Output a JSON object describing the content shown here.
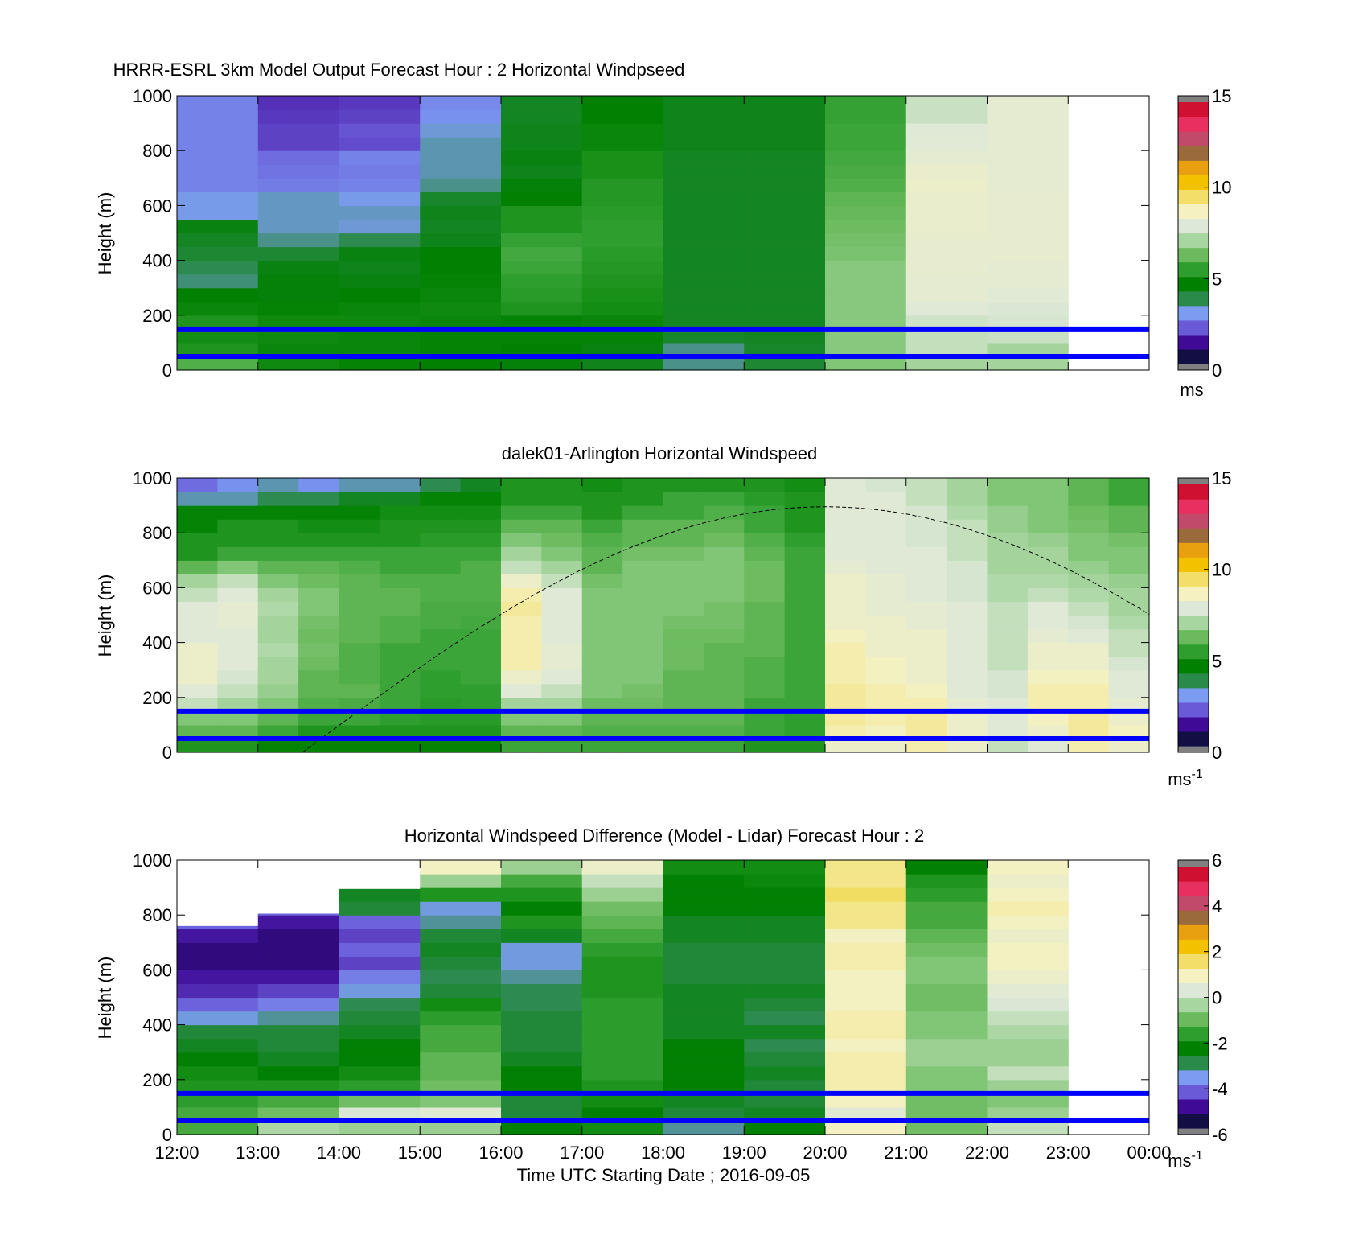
{
  "colors": {
    "overlay_line": "#0000ff",
    "sun_curve": "#000000"
  },
  "colormaps": {
    "windspeed": [
      "#130f44",
      "#3e0a96",
      "#6a5ad8",
      "#7c9cf2",
      "#2a8a4a",
      "#008000",
      "#2e9e2e",
      "#6bbb5e",
      "#a8d6a0",
      "#dde8d8",
      "#f5f1c0",
      "#f2de68",
      "#f2c200",
      "#e8a010",
      "#9a6a3a",
      "#c14a6a",
      "#e83060",
      "#d01030"
    ],
    "difference": [
      "#130f44",
      "#3e0a96",
      "#6a5ad8",
      "#7c9cf2",
      "#2a8a4a",
      "#008000",
      "#2e9e2e",
      "#6bbb5e",
      "#a8d6a0",
      "#dde8d8",
      "#f5f1c0",
      "#f2de68",
      "#f2c200",
      "#e8a010",
      "#9a6a3a",
      "#c14a6a",
      "#e83060",
      "#d01030"
    ]
  },
  "chart_data": [
    {
      "type": "heatmap",
      "title": "HRRR-ESRL 3km Model Output   Forecast Hour : 2 Horizontal Windpseed",
      "ylabel": "Height (m)",
      "xlabel": "",
      "ylim": [
        0,
        1000
      ],
      "yticks": [
        "0",
        "200",
        "400",
        "600",
        "800",
        "1000"
      ],
      "xlim_hours": [
        12,
        24
      ],
      "colorbar": {
        "ticks": [
          "0",
          "5",
          "10",
          "15"
        ],
        "range": [
          0,
          15
        ],
        "unit": "ms"
      },
      "hlines_m": [
        150,
        50
      ],
      "x_hours": [
        12,
        13,
        14,
        15,
        16,
        17,
        18,
        19,
        20,
        21,
        22
      ],
      "y_levels_m": [
        25,
        75,
        125,
        175,
        225,
        275,
        325,
        375,
        425,
        475,
        525,
        575,
        625,
        675,
        725,
        775,
        825,
        875,
        925,
        975
      ],
      "values": [
        [
          5.8,
          5.0,
          4.8,
          5.0,
          4.6,
          4.4,
          3.3,
          3.5,
          3.8,
          4.0,
          4.2,
          2.7,
          2.7,
          2.3,
          2.3,
          2.3,
          2.3,
          2.3,
          2.3,
          2.3
        ],
        [
          4.7,
          4.6,
          4.7,
          4.7,
          4.5,
          4.3,
          4.3,
          4.2,
          3.8,
          3.2,
          2.9,
          2.9,
          2.9,
          2.2,
          2.1,
          2.0,
          1.5,
          1.5,
          1.4,
          1.3
        ],
        [
          4.5,
          4.6,
          4.6,
          4.7,
          4.6,
          4.4,
          4.2,
          4.1,
          4.2,
          3.5,
          2.8,
          2.9,
          2.7,
          2.3,
          2.2,
          2.3,
          1.6,
          1.7,
          1.5,
          1.4
        ],
        [
          4.4,
          4.5,
          4.5,
          4.6,
          4.7,
          4.6,
          4.5,
          4.4,
          4.4,
          4.1,
          4.0,
          4.1,
          3.9,
          3.2,
          3.0,
          3.0,
          3.0,
          2.8,
          2.5,
          2.4
        ],
        [
          4.3,
          4.4,
          4.5,
          4.5,
          5.0,
          5.2,
          5.3,
          5.5,
          5.6,
          5.4,
          5.0,
          5.0,
          4.4,
          4.3,
          4.1,
          4.2,
          4.1,
          4.1,
          4.0,
          4.0
        ],
        [
          4.1,
          4.2,
          4.5,
          4.6,
          4.8,
          4.9,
          5.0,
          5.1,
          5.2,
          5.3,
          5.3,
          5.2,
          5.1,
          5.1,
          4.9,
          4.9,
          4.6,
          4.6,
          4.4,
          4.4
        ],
        [
          3.2,
          3.2,
          3.9,
          4.0,
          4.0,
          4.0,
          4.0,
          4.0,
          4.0,
          4.0,
          4.0,
          4.0,
          4.0,
          4.0,
          4.0,
          4.0,
          4.1,
          4.1,
          4.1,
          4.1
        ],
        [
          3.8,
          3.9,
          4.0,
          4.0,
          4.0,
          4.0,
          4.0,
          4.0,
          4.0,
          4.0,
          4.0,
          4.0,
          4.0,
          4.0,
          4.0,
          4.0,
          4.1,
          4.1,
          4.1,
          4.1
        ],
        [
          6.5,
          6.6,
          6.6,
          6.6,
          6.6,
          6.6,
          6.6,
          6.6,
          6.4,
          6.3,
          6.2,
          6.1,
          6.0,
          5.8,
          5.7,
          5.6,
          5.5,
          5.5,
          5.4,
          5.4
        ],
        [
          7.0,
          7.5,
          7.5,
          7.7,
          8.0,
          8.2,
          8.2,
          8.3,
          8.3,
          8.3,
          8.4,
          8.4,
          8.4,
          8.5,
          8.4,
          8.2,
          8.1,
          8.0,
          7.6,
          7.6
        ],
        [
          7.0,
          7.0,
          7.6,
          7.8,
          7.9,
          8.1,
          8.2,
          8.2,
          8.3,
          8.3,
          8.3,
          8.3,
          8.3,
          8.2,
          8.2,
          8.2,
          8.2,
          8.2,
          8.2,
          8.2
        ]
      ]
    },
    {
      "type": "heatmap",
      "title": "dalek01-Arlington  Horizontal Windspeed",
      "ylabel": "Height (m)",
      "xlabel": "",
      "ylim": [
        0,
        1000
      ],
      "yticks": [
        "0",
        "200",
        "400",
        "600",
        "800",
        "1000"
      ],
      "xlim_hours": [
        12,
        24
      ],
      "colorbar": {
        "ticks": [
          "0",
          "5",
          "10",
          "15"
        ],
        "range": [
          0,
          15
        ],
        "unit": "ms-1"
      },
      "hlines_m": [
        150,
        50
      ],
      "sun_curve": {
        "start_hour": 13.55,
        "peak_hour": 20.0,
        "peak_m": 895,
        "end_m": 500
      },
      "x_hours": [
        12,
        12.5,
        13,
        13.5,
        14,
        14.5,
        15,
        15.5,
        16,
        16.5,
        17,
        17.5,
        18,
        18.5,
        19,
        19.5,
        20,
        20.5,
        21,
        21.5,
        22,
        22.5,
        23,
        23.5
      ],
      "y_levels_m": [
        25,
        75,
        125,
        175,
        225,
        275,
        325,
        375,
        425,
        475,
        525,
        575,
        625,
        675,
        725,
        775,
        825,
        875,
        925,
        975
      ],
      "values": [
        [
          5.0,
          6.0,
          6.5,
          7.5,
          8.0,
          8.5,
          8.5,
          8.5,
          8.0,
          8.0,
          8.0,
          7.5,
          7.0,
          6.0,
          5.0,
          5.0,
          4.5,
          4.5,
          3.0,
          2.0
        ],
        [
          5.0,
          6.0,
          6.5,
          7.0,
          7.5,
          7.8,
          8.0,
          8.0,
          8.0,
          8.2,
          8.2,
          8.0,
          7.5,
          6.5,
          5.5,
          5.0,
          5.0,
          4.5,
          3.0,
          2.5
        ],
        [
          4.5,
          5.5,
          6.0,
          6.5,
          6.8,
          7.0,
          7.0,
          7.2,
          7.0,
          7.0,
          7.2,
          7.0,
          6.5,
          6.0,
          5.5,
          5.0,
          5.0,
          4.5,
          3.5,
          3.0
        ],
        [
          4.5,
          5.0,
          5.5,
          5.8,
          6.0,
          6.0,
          6.2,
          6.3,
          6.2,
          6.3,
          6.5,
          6.5,
          6.2,
          6.0,
          5.5,
          5.0,
          4.8,
          4.5,
          3.5,
          2.5
        ],
        [
          4.5,
          5.0,
          5.5,
          5.7,
          6.0,
          5.8,
          5.8,
          5.8,
          6.0,
          6.0,
          6.0,
          6.0,
          6.0,
          5.8,
          5.5,
          5.0,
          4.8,
          4.5,
          4.0,
          3.0
        ],
        [
          4.5,
          5.0,
          5.3,
          5.5,
          5.5,
          5.5,
          5.5,
          5.5,
          5.8,
          5.8,
          6.0,
          6.0,
          5.8,
          5.5,
          5.5,
          5.0,
          5.0,
          4.8,
          4.0,
          3.0
        ],
        [
          4.5,
          5.0,
          5.2,
          5.2,
          5.3,
          5.3,
          5.5,
          5.5,
          5.5,
          5.7,
          5.7,
          5.8,
          5.8,
          5.5,
          5.5,
          5.2,
          5.0,
          4.8,
          4.5,
          3.5
        ],
        [
          4.5,
          5.0,
          5.2,
          5.3,
          5.3,
          5.5,
          5.5,
          5.5,
          5.5,
          5.6,
          5.7,
          5.8,
          5.8,
          5.8,
          5.5,
          5.2,
          5.0,
          4.8,
          4.5,
          4.0
        ],
        [
          5.5,
          6.0,
          6.5,
          7.0,
          8.0,
          8.5,
          9.0,
          9.0,
          9.0,
          9.0,
          9.2,
          9.0,
          8.5,
          7.5,
          7.0,
          6.5,
          6.0,
          5.5,
          5.0,
          5.0
        ],
        [
          5.5,
          6.0,
          6.5,
          7.0,
          7.5,
          8.0,
          8.2,
          8.2,
          8.0,
          8.0,
          8.0,
          8.0,
          7.5,
          7.0,
          6.5,
          6.2,
          6.0,
          5.5,
          5.0,
          5.0
        ],
        [
          5.5,
          5.8,
          6.0,
          6.2,
          6.5,
          6.5,
          6.5,
          6.5,
          6.5,
          6.5,
          6.5,
          6.5,
          6.3,
          6.0,
          6.0,
          5.8,
          5.5,
          5.0,
          5.0,
          4.8
        ],
        [
          5.5,
          5.8,
          6.0,
          6.2,
          6.3,
          6.5,
          6.5,
          6.5,
          6.5,
          6.5,
          6.5,
          6.5,
          6.5,
          6.5,
          6.3,
          6.0,
          6.0,
          5.5,
          5.0,
          5.0
        ],
        [
          5.5,
          5.8,
          6.0,
          6.0,
          6.0,
          6.0,
          6.2,
          6.2,
          6.2,
          6.3,
          6.5,
          6.5,
          6.5,
          6.5,
          6.3,
          6.0,
          6.0,
          5.5,
          5.5,
          5.0
        ],
        [
          5.5,
          5.8,
          6.0,
          6.0,
          6.0,
          6.0,
          6.0,
          6.0,
          6.2,
          6.3,
          6.3,
          6.5,
          6.5,
          6.5,
          6.5,
          6.2,
          6.0,
          5.8,
          5.5,
          5.0
        ],
        [
          5.0,
          5.5,
          5.5,
          5.5,
          5.8,
          5.8,
          5.8,
          6.0,
          6.0,
          6.0,
          6.0,
          6.2,
          6.2,
          6.2,
          6.0,
          5.8,
          5.5,
          5.5,
          5.2,
          5.0
        ],
        [
          5.0,
          5.3,
          5.3,
          5.5,
          5.5,
          5.5,
          5.5,
          5.5,
          5.5,
          5.5,
          5.5,
          5.5,
          5.5,
          5.5,
          5.5,
          5.3,
          5.0,
          5.0,
          5.0,
          4.8
        ],
        [
          8.5,
          9.0,
          9.2,
          9.2,
          9.2,
          9.0,
          9.0,
          9.0,
          8.8,
          8.5,
          8.5,
          8.5,
          8.5,
          8.2,
          8.0,
          8.0,
          8.0,
          8.0,
          8.0,
          8.0
        ],
        [
          8.5,
          8.8,
          9.0,
          9.0,
          9.0,
          8.8,
          8.8,
          8.5,
          8.5,
          8.5,
          8.2,
          8.2,
          8.2,
          8.0,
          8.0,
          8.0,
          8.0,
          8.0,
          8.0,
          7.8
        ],
        [
          9.0,
          9.2,
          9.2,
          9.0,
          8.8,
          8.5,
          8.5,
          8.5,
          8.5,
          8.2,
          8.2,
          8.0,
          8.0,
          8.0,
          8.0,
          7.8,
          7.8,
          7.8,
          7.5,
          7.5
        ],
        [
          8.5,
          8.5,
          8.5,
          8.2,
          8.0,
          8.0,
          8.0,
          8.0,
          8.0,
          8.0,
          8.0,
          7.8,
          7.8,
          7.8,
          7.5,
          7.5,
          7.5,
          7.2,
          7.0,
          7.0
        ],
        [
          7.5,
          8.0,
          8.0,
          8.0,
          7.8,
          7.8,
          7.5,
          7.5,
          7.5,
          7.5,
          7.5,
          7.2,
          7.2,
          7.0,
          7.0,
          7.0,
          6.8,
          6.8,
          6.5,
          6.5
        ],
        [
          8.0,
          8.5,
          8.8,
          9.0,
          9.0,
          8.8,
          8.5,
          8.5,
          8.2,
          8.0,
          8.0,
          7.5,
          7.2,
          7.0,
          7.0,
          6.8,
          6.5,
          6.5,
          6.5,
          6.5
        ],
        [
          9.0,
          9.2,
          9.2,
          9.0,
          9.0,
          8.8,
          8.5,
          8.5,
          8.0,
          7.8,
          7.5,
          7.2,
          7.0,
          6.8,
          6.5,
          6.5,
          6.3,
          6.2,
          6.0,
          6.0
        ],
        [
          8.5,
          8.8,
          8.5,
          8.2,
          8.0,
          8.0,
          7.8,
          7.5,
          7.5,
          7.2,
          7.0,
          7.0,
          6.8,
          6.5,
          6.5,
          6.3,
          6.0,
          6.0,
          5.5,
          5.5
        ]
      ]
    },
    {
      "type": "heatmap",
      "title": "Horizontal Windspeed Difference (Model - Lidar) Forecast Hour : 2",
      "ylabel": "Height (m)",
      "xlabel": "Time UTC  Starting Date ; 2016-09-05",
      "ylim": [
        0,
        1000
      ],
      "yticks": [
        "0",
        "200",
        "400",
        "600",
        "800",
        "1000"
      ],
      "xticks": [
        "12:00",
        "13:00",
        "14:00",
        "15:00",
        "16:00",
        "17:00",
        "18:00",
        "19:00",
        "20:00",
        "21:00",
        "22:00",
        "23:00",
        "00:00"
      ],
      "xlim_hours": [
        12,
        24
      ],
      "colorbar": {
        "ticks": [
          "-6",
          "-4",
          "-2",
          "0",
          "2",
          "4",
          "6"
        ],
        "range": [
          -6,
          6
        ],
        "unit": "ms-1"
      },
      "hlines_m": [
        150,
        50
      ],
      "x_hours": [
        12,
        13,
        14,
        15,
        16,
        17,
        18,
        19,
        20,
        21,
        22
      ],
      "y_tops_m": [
        760,
        805,
        895,
        1000,
        1000,
        1000,
        1000,
        1000,
        1000,
        1000,
        1000
      ],
      "y_levels_m": [
        25,
        75,
        125,
        175,
        225,
        275,
        325,
        375,
        425,
        475,
        525,
        575,
        625,
        675,
        725,
        775,
        825,
        875,
        925,
        975
      ],
      "values": [
        [
          -1.5,
          -1.5,
          -1.8,
          -2.0,
          -2.2,
          -2.5,
          -2.8,
          -3.0,
          -3.8,
          -4.5,
          -5.0,
          -5.2,
          -5.5,
          -5.5,
          -5.2,
          -4.5,
          -3.0,
          -3.0,
          -3.0,
          -3.0
        ],
        [
          -0.3,
          -1.0,
          -1.5,
          -2.0,
          -2.5,
          -2.8,
          -3.0,
          -3.0,
          -3.5,
          -4.2,
          -4.8,
          -5.2,
          -5.5,
          -5.5,
          -5.5,
          -5.2,
          -4.5,
          -4.5,
          -4.5,
          -4.5
        ],
        [
          -0.5,
          0.3,
          -1.0,
          -1.8,
          -2.2,
          -2.5,
          -2.5,
          -2.8,
          -3.0,
          -3.2,
          -3.8,
          -4.2,
          -4.8,
          -4.5,
          -4.8,
          -4.5,
          -3.0,
          -2.8,
          -2.8,
          -2.8
        ],
        [
          -0.5,
          0.5,
          -0.8,
          -1.0,
          -1.2,
          -1.2,
          -1.5,
          -1.5,
          -1.8,
          -2.2,
          -3.0,
          -3.2,
          -3.0,
          -2.8,
          -3.0,
          -3.5,
          -3.8,
          -2.0,
          -0.5,
          1.0
        ],
        [
          -2.5,
          -3.0,
          -3.0,
          -2.5,
          -2.5,
          -2.8,
          -3.0,
          -3.0,
          -3.0,
          -3.2,
          -3.2,
          -3.5,
          -3.8,
          -3.8,
          -2.8,
          -2.0,
          -2.5,
          -2.0,
          -1.5,
          -0.5
        ],
        [
          -2.2,
          -2.5,
          -2.2,
          -2.0,
          -1.8,
          -1.8,
          -1.8,
          -1.8,
          -1.8,
          -1.8,
          -2.0,
          -2.0,
          -2.0,
          -1.8,
          -1.5,
          -1.2,
          -1.0,
          -0.5,
          0.0,
          0.8
        ],
        [
          -3.5,
          -3.0,
          -2.8,
          -2.5,
          -2.5,
          -2.5,
          -2.5,
          -2.8,
          -2.8,
          -2.8,
          -2.8,
          -3.0,
          -3.0,
          -3.0,
          -2.8,
          -2.8,
          -2.5,
          -2.5,
          -2.5,
          -2.2
        ],
        [
          -2.5,
          -2.8,
          -3.0,
          -3.0,
          -2.8,
          -3.0,
          -3.2,
          -2.8,
          -3.2,
          -3.0,
          -2.8,
          -3.0,
          -3.0,
          -3.0,
          -2.8,
          -2.8,
          -2.5,
          -2.5,
          -2.3,
          -2.2
        ],
        [
          1.0,
          0.5,
          1.0,
          1.2,
          1.2,
          1.2,
          1.0,
          1.2,
          1.2,
          1.0,
          1.0,
          1.0,
          1.2,
          1.2,
          1.0,
          1.5,
          1.5,
          1.8,
          1.5,
          1.5
        ],
        [
          -1.0,
          -1.0,
          -1.0,
          -0.8,
          -0.8,
          -0.5,
          -0.5,
          -0.8,
          -0.8,
          -1.0,
          -1.0,
          -0.8,
          -0.8,
          -1.0,
          -1.2,
          -1.5,
          -1.5,
          -1.8,
          -2.0,
          -2.5
        ],
        [
          0.0,
          -0.5,
          -0.8,
          -0.5,
          0.0,
          -0.5,
          -0.5,
          -0.3,
          0.0,
          0.3,
          0.5,
          0.8,
          1.0,
          1.0,
          0.8,
          1.0,
          1.2,
          1.0,
          0.8,
          1.0
        ]
      ]
    }
  ]
}
